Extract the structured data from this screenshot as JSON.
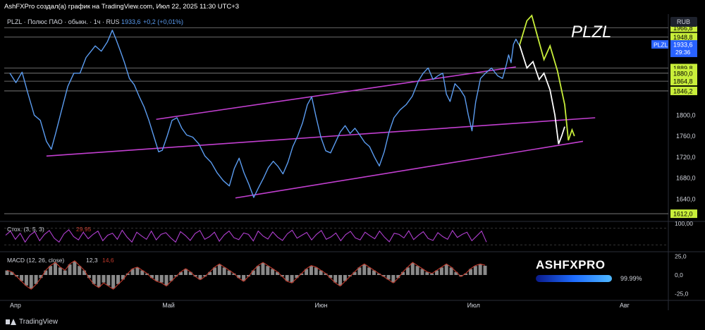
{
  "attribution": "AshFXPro создал(а) график на TradingView.com, Июл 22, 2025 11:30 UTC+3",
  "footer": {
    "brand": "TradingView"
  },
  "watermark": {
    "text": "ASHFXPRO",
    "percent": "99.99%"
  },
  "colors": {
    "background": "#000000",
    "price_line": "#5b9cf0",
    "channel": "#c23fd0",
    "forecast_white": "#ffffff",
    "forecast_yellow": "#c8ee3a",
    "level_label_bg": "#c8ee3a",
    "stoch": "#b03fd0",
    "macd_line": "#c0392b",
    "macd_hist": "#8a8a8a"
  },
  "chart_data": [
    {
      "type": "line",
      "header": {
        "symbol": "PLZL · Полюс ПАО · обыкн. · 1ч · RUS",
        "price": "1933,6",
        "change": "+0,2 (+0,01%)"
      },
      "title": "PLZL",
      "currency": "RUB",
      "ylim": [
        1600,
        1990
      ],
      "y_ticks": [
        "1800,0",
        "1760,0",
        "1720,0",
        "1680,0",
        "1640,0"
      ],
      "x_ticks": [
        "Апр",
        "Май",
        "Июн",
        "Июл",
        "Авг"
      ],
      "x_tick_pos": [
        0,
        0.25,
        0.5,
        0.75,
        1.0
      ],
      "x_range": [
        0,
        1.08
      ],
      "price_label": {
        "symbol": "PLZL",
        "value": "1933,6",
        "countdown": "29:36"
      },
      "levels": [
        {
          "value": 1966.8,
          "label": "1966,8"
        },
        {
          "value": 1948.8,
          "label": "1948,8"
        },
        {
          "value": 1889.8,
          "label": "1889,8"
        },
        {
          "value": 1880.0,
          "label": "1880,0"
        },
        {
          "value": 1864.8,
          "label": "1864,8"
        },
        {
          "value": 1846.2,
          "label": "1846,2"
        },
        {
          "value": 1612.0,
          "label": "1612,0"
        }
      ],
      "price_series": [
        [
          0.0,
          1880
        ],
        [
          0.01,
          1862
        ],
        [
          0.02,
          1882
        ],
        [
          0.03,
          1840
        ],
        [
          0.04,
          1800
        ],
        [
          0.05,
          1790
        ],
        [
          0.06,
          1750
        ],
        [
          0.068,
          1735
        ],
        [
          0.075,
          1765
        ],
        [
          0.085,
          1810
        ],
        [
          0.095,
          1855
        ],
        [
          0.105,
          1880
        ],
        [
          0.115,
          1880
        ],
        [
          0.125,
          1910
        ],
        [
          0.14,
          1932
        ],
        [
          0.15,
          1922
        ],
        [
          0.16,
          1940
        ],
        [
          0.168,
          1962
        ],
        [
          0.174,
          1945
        ],
        [
          0.182,
          1920
        ],
        [
          0.188,
          1900
        ],
        [
          0.196,
          1870
        ],
        [
          0.204,
          1858
        ],
        [
          0.212,
          1836
        ],
        [
          0.22,
          1816
        ],
        [
          0.228,
          1790
        ],
        [
          0.236,
          1760
        ],
        [
          0.244,
          1730
        ],
        [
          0.25,
          1733
        ],
        [
          0.258,
          1760
        ],
        [
          0.266,
          1790
        ],
        [
          0.274,
          1795
        ],
        [
          0.282,
          1775
        ],
        [
          0.29,
          1762
        ],
        [
          0.3,
          1758
        ],
        [
          0.31,
          1745
        ],
        [
          0.32,
          1722
        ],
        [
          0.33,
          1710
        ],
        [
          0.34,
          1690
        ],
        [
          0.35,
          1675
        ],
        [
          0.36,
          1665
        ],
        [
          0.368,
          1698
        ],
        [
          0.376,
          1718
        ],
        [
          0.384,
          1690
        ],
        [
          0.392,
          1668
        ],
        [
          0.4,
          1643
        ],
        [
          0.408,
          1662
        ],
        [
          0.416,
          1680
        ],
        [
          0.424,
          1700
        ],
        [
          0.432,
          1712
        ],
        [
          0.44,
          1702
        ],
        [
          0.448,
          1688
        ],
        [
          0.456,
          1710
        ],
        [
          0.464,
          1740
        ],
        [
          0.472,
          1760
        ],
        [
          0.48,
          1785
        ],
        [
          0.488,
          1820
        ],
        [
          0.495,
          1835
        ],
        [
          0.502,
          1798
        ],
        [
          0.51,
          1758
        ],
        [
          0.518,
          1732
        ],
        [
          0.526,
          1728
        ],
        [
          0.534,
          1748
        ],
        [
          0.542,
          1768
        ],
        [
          0.55,
          1780
        ],
        [
          0.558,
          1765
        ],
        [
          0.566,
          1775
        ],
        [
          0.574,
          1762
        ],
        [
          0.582,
          1748
        ],
        [
          0.59,
          1740
        ],
        [
          0.598,
          1720
        ],
        [
          0.606,
          1703
        ],
        [
          0.614,
          1730
        ],
        [
          0.622,
          1768
        ],
        [
          0.63,
          1795
        ],
        [
          0.64,
          1810
        ],
        [
          0.65,
          1820
        ],
        [
          0.66,
          1836
        ],
        [
          0.67,
          1865
        ],
        [
          0.678,
          1880
        ],
        [
          0.686,
          1890
        ],
        [
          0.694,
          1868
        ],
        [
          0.702,
          1875
        ],
        [
          0.71,
          1880
        ],
        [
          0.716,
          1840
        ],
        [
          0.722,
          1826
        ],
        [
          0.73,
          1860
        ],
        [
          0.738,
          1850
        ],
        [
          0.746,
          1835
        ],
        [
          0.752,
          1800
        ],
        [
          0.758,
          1770
        ],
        [
          0.764,
          1825
        ],
        [
          0.772,
          1870
        ],
        [
          0.78,
          1880
        ],
        [
          0.79,
          1890
        ],
        [
          0.8,
          1875
        ],
        [
          0.808,
          1870
        ],
        [
          0.814,
          1895
        ],
        [
          0.818,
          1915
        ],
        [
          0.822,
          1900
        ],
        [
          0.826,
          1935
        ],
        [
          0.83,
          1945
        ],
        [
          0.834,
          1936
        ],
        [
          0.836,
          1933.6
        ]
      ],
      "forecast_white": [
        [
          0.836,
          1933.6
        ],
        [
          0.848,
          1890
        ],
        [
          0.858,
          1902
        ],
        [
          0.868,
          1868
        ],
        [
          0.876,
          1880
        ],
        [
          0.886,
          1848
        ],
        [
          0.894,
          1800
        ],
        [
          0.9,
          1745
        ],
        [
          0.905,
          1760
        ],
        [
          0.91,
          1778
        ]
      ],
      "forecast_yellow": [
        [
          0.836,
          1933.6
        ],
        [
          0.848,
          1980
        ],
        [
          0.856,
          1990
        ],
        [
          0.866,
          1948
        ],
        [
          0.876,
          1906
        ],
        [
          0.886,
          1932
        ],
        [
          0.898,
          1885
        ],
        [
          0.91,
          1820
        ],
        [
          0.916,
          1752
        ],
        [
          0.922,
          1772
        ],
        [
          0.926,
          1760
        ]
      ],
      "channel_lines": [
        [
          [
            0.06,
            1722
          ],
          [
            0.96,
            1795
          ]
        ],
        [
          [
            0.24,
            1792
          ],
          [
            0.83,
            1892
          ]
        ],
        [
          [
            0.37,
            1642
          ],
          [
            0.94,
            1750
          ]
        ]
      ],
      "stochastic": {
        "label": "Стох. (3, 5, 3)",
        "value": "29,95",
        "ticks": [
          "100,00"
        ],
        "values": [
          55,
          70,
          40,
          62,
          30,
          55,
          68,
          35,
          58,
          72,
          44,
          30,
          60,
          75,
          50,
          38,
          66,
          42,
          58,
          70,
          35,
          55,
          62,
          40,
          73,
          48,
          30,
          66,
          52,
          40,
          70,
          38,
          58,
          64,
          45,
          30,
          68,
          54,
          36,
          61,
          72,
          40,
          50,
          66,
          33,
          56,
          70,
          46,
          39,
          63,
          58,
          34,
          70,
          52,
          41,
          67,
          48,
          36,
          60,
          73,
          44,
          55,
          65,
          38,
          58,
          72,
          40,
          49,
          63,
          35,
          57,
          69,
          45,
          38,
          66,
          53,
          42,
          70,
          48,
          31,
          62,
          58,
          45,
          71,
          39,
          55,
          68,
          43,
          36,
          64,
          50,
          40,
          72,
          47,
          58,
          66,
          35,
          52,
          70,
          29.95
        ]
      },
      "macd": {
        "label": "MACD (12, 26, close)",
        "value1": "12,3",
        "value2": "14,6",
        "ticks": [
          "25,0",
          "0,0",
          "-25,0"
        ],
        "ylim": [
          -30,
          30
        ],
        "values": [
          6,
          4,
          -2,
          -8,
          -14,
          -18,
          -12,
          -4,
          6,
          12,
          16,
          10,
          6,
          14,
          18,
          12,
          6,
          -4,
          -12,
          -16,
          -10,
          -14,
          -18,
          -12,
          -6,
          2,
          8,
          10,
          6,
          2,
          -4,
          -8,
          -10,
          -14,
          -8,
          -2,
          4,
          8,
          4,
          -2,
          -6,
          -2,
          4,
          10,
          14,
          10,
          6,
          2,
          -4,
          -8,
          -2,
          6,
          12,
          16,
          12,
          8,
          4,
          -2,
          -8,
          -10,
          -4,
          2,
          8,
          12,
          10,
          6,
          2,
          -4,
          -10,
          -14,
          -8,
          -2,
          4,
          10,
          14,
          10,
          6,
          2,
          -2,
          -6,
          -10,
          -4,
          4,
          10,
          16,
          12,
          8,
          4,
          2,
          6,
          10,
          14,
          10,
          4,
          -2,
          2,
          8,
          12,
          14,
          12.3
        ]
      }
    }
  ]
}
